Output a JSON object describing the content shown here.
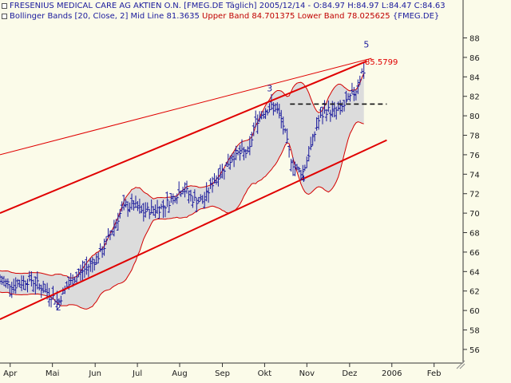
{
  "header": {
    "line1": "FRESENIUS MEDICAL CARE AG AKTIEN O.N. [FMEG.DE  Täglich] 2005/12/14 - O:84.97 H:84.97 L:84.47 C:84.63",
    "line2_prefix": "Bollinger Bands [20, Close, 2] Mid Line 81.3635",
    "line2_upper": "Upper Band 84.701375",
    "line2_lower": "Lower Band 78.025625",
    "line2_suffix": "{FMEG.DE}"
  },
  "colors": {
    "background": "#fbfbe9",
    "price": "#1a1a9c",
    "band_fill": "#dcdcdc",
    "band_line": "#d40000",
    "channel": "#e00000",
    "axis_text": "#1a1a1a",
    "wave_label": "#1a1a9c"
  },
  "chart_data": {
    "type": "ohlc",
    "ylim": [
      54.6,
      89.6
    ],
    "y_ticks": [
      56,
      58,
      60,
      62,
      64,
      66,
      68,
      70,
      72,
      74,
      76,
      78,
      80,
      82,
      84,
      86,
      88
    ],
    "x_ticks": [
      {
        "label": "Apr",
        "x": 2005.25
      },
      {
        "label": "Mai",
        "x": 2005.333
      },
      {
        "label": "Jun",
        "x": 2005.417
      },
      {
        "label": "Jul",
        "x": 2005.5
      },
      {
        "label": "Aug",
        "x": 2005.583
      },
      {
        "label": "Sep",
        "x": 2005.667
      },
      {
        "label": "Okt",
        "x": 2005.75
      },
      {
        "label": "Nov",
        "x": 2005.833
      },
      {
        "label": "Dez",
        "x": 2005.917
      },
      {
        "label": "2006",
        "x": 2006.0
      },
      {
        "label": "Feb",
        "x": 2006.083
      }
    ],
    "xlim": [
      2005.23,
      2006.14
    ],
    "price_anchors": [
      [
        2005.23,
        63.0
      ],
      [
        2005.26,
        62.6
      ],
      [
        2005.29,
        63.2
      ],
      [
        2005.31,
        62.4
      ],
      [
        2005.33,
        61.6
      ],
      [
        2005.345,
        60.9
      ],
      [
        2005.36,
        62.4
      ],
      [
        2005.39,
        64.0
      ],
      [
        2005.41,
        64.8
      ],
      [
        2005.43,
        66.0
      ],
      [
        2005.45,
        68.2
      ],
      [
        2005.47,
        70.4
      ],
      [
        2005.49,
        70.9
      ],
      [
        2005.51,
        70.1
      ],
      [
        2005.53,
        70.4
      ],
      [
        2005.55,
        70.6
      ],
      [
        2005.57,
        71.6
      ],
      [
        2005.59,
        72.6
      ],
      [
        2005.61,
        71.4
      ],
      [
        2005.63,
        71.2
      ],
      [
        2005.65,
        73.4
      ],
      [
        2005.67,
        74.6
      ],
      [
        2005.69,
        76.0
      ],
      [
        2005.72,
        76.3
      ],
      [
        2005.73,
        79.2
      ],
      [
        2005.75,
        80.6
      ],
      [
        2005.77,
        81.0
      ],
      [
        2005.785,
        79.4
      ],
      [
        2005.8,
        75.8
      ],
      [
        2005.81,
        74.6
      ],
      [
        2005.825,
        74.2
      ],
      [
        2005.84,
        76.6
      ],
      [
        2005.855,
        79.4
      ],
      [
        2005.87,
        80.6
      ],
      [
        2005.885,
        80.4
      ],
      [
        2005.9,
        80.7
      ],
      [
        2005.915,
        81.6
      ],
      [
        2005.93,
        82.7
      ],
      [
        2005.94,
        84.4
      ],
      [
        2005.945,
        84.6
      ]
    ],
    "channels": [
      {
        "name": "upper-channel",
        "x": [
          2005.23,
          2005.95
        ],
        "y": [
          70.0,
          85.6
        ],
        "width": 2
      },
      {
        "name": "lower-channel",
        "x": [
          2005.23,
          2005.99
        ],
        "y": [
          59.1,
          77.5
        ],
        "width": 2
      },
      {
        "name": "outer-trendline",
        "x": [
          2005.23,
          2005.96
        ],
        "y": [
          76.0,
          85.9
        ],
        "width": 1
      }
    ],
    "resistance": {
      "x": [
        2005.8,
        2005.99
      ],
      "y": 81.2
    },
    "price_label": "85.5799",
    "price_label_value": 85.58,
    "wave_labels": [
      {
        "text": "2",
        "x": 2005.345,
        "y": 60.0
      },
      {
        "text": "3",
        "x": 2005.76,
        "y": 82.5
      },
      {
        "text": "4",
        "x": 2005.825,
        "y": 73.2
      },
      {
        "text": "5",
        "x": 2005.95,
        "y": 87.0
      }
    ]
  }
}
